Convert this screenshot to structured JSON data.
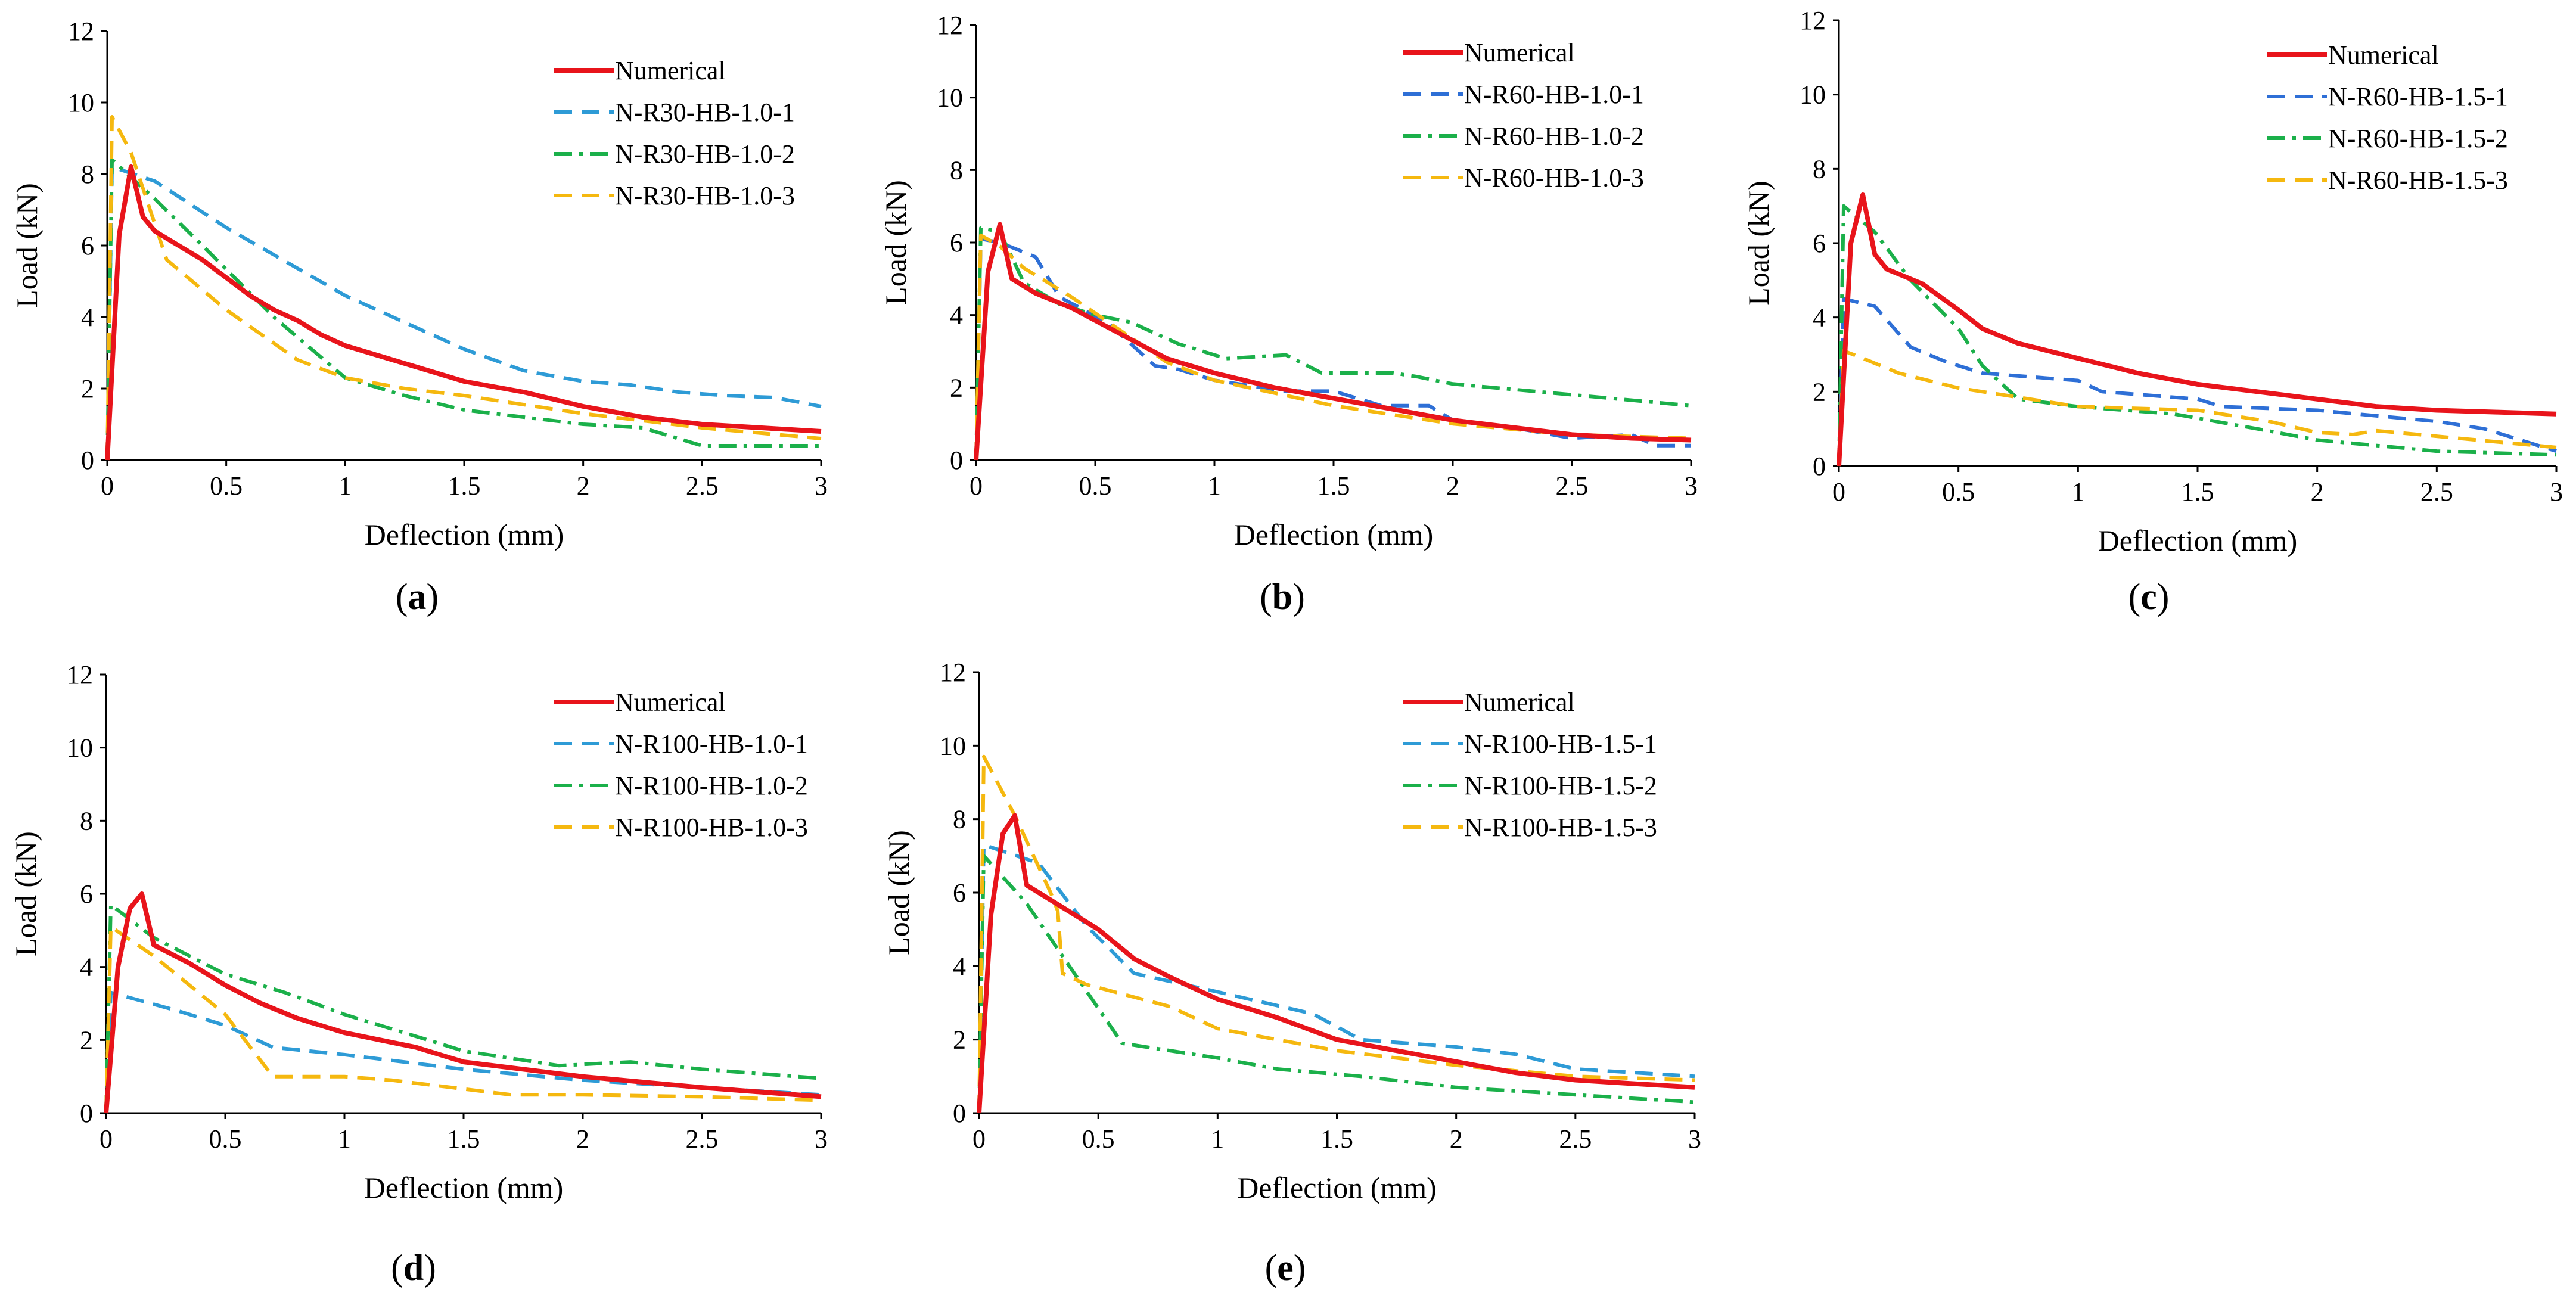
{
  "chart_data": [
    {
      "type": "line",
      "panel_label": "a",
      "xlabel": "Deflection (mm)",
      "ylabel": "Load (kN)",
      "xlim": [
        0,
        3
      ],
      "ylim": [
        0,
        12
      ],
      "xticks": [
        "0",
        "0.5",
        "1",
        "1.5",
        "2",
        "2.5",
        "3"
      ],
      "yticks": [
        "0",
        "2",
        "4",
        "6",
        "8",
        "10",
        "12"
      ],
      "grid": false,
      "legend": "top-right",
      "series": [
        {
          "name": "Numerical",
          "color": "#e8141b",
          "dash": "solid",
          "x": [
            0,
            0.05,
            0.1,
            0.15,
            0.2,
            0.3,
            0.4,
            0.5,
            0.6,
            0.7,
            0.8,
            0.9,
            1.0,
            1.2,
            1.5,
            1.75,
            2.0,
            2.25,
            2.5,
            2.75,
            3.0
          ],
          "y": [
            0,
            6.3,
            8.2,
            6.8,
            6.4,
            6.0,
            5.6,
            5.1,
            4.6,
            4.2,
            3.9,
            3.5,
            3.2,
            2.8,
            2.2,
            1.9,
            1.5,
            1.2,
            1.0,
            0.9,
            0.8
          ]
        },
        {
          "name": "N-R30-HB-1.0-1",
          "color": "#2e9bd6",
          "dash": "dash",
          "x": [
            0,
            0.02,
            0.2,
            0.5,
            1.0,
            1.5,
            1.75,
            2.0,
            2.2,
            2.4,
            2.6,
            2.8,
            3.0
          ],
          "y": [
            0,
            8.2,
            7.8,
            6.5,
            4.6,
            3.1,
            2.5,
            2.2,
            2.1,
            1.9,
            1.8,
            1.75,
            1.5
          ]
        },
        {
          "name": "N-R30-HB-1.0-2",
          "color": "#1bb04a",
          "dash": "dashdot",
          "x": [
            0,
            0.02,
            0.2,
            0.4,
            0.7,
            1.0,
            1.25,
            1.5,
            1.75,
            2.0,
            2.25,
            2.4,
            2.5,
            2.75,
            3.0
          ],
          "y": [
            0,
            8.4,
            7.3,
            6.0,
            4.0,
            2.3,
            1.8,
            1.4,
            1.2,
            1.0,
            0.9,
            0.6,
            0.4,
            0.4,
            0.4
          ]
        },
        {
          "name": "N-R30-HB-1.0-3",
          "color": "#f5b80f",
          "dash": "dash",
          "x": [
            0,
            0.02,
            0.1,
            0.25,
            0.5,
            0.8,
            1.0,
            1.25,
            1.5,
            2.0,
            2.5,
            3.0
          ],
          "y": [
            0,
            9.6,
            8.6,
            5.6,
            4.2,
            2.8,
            2.3,
            2.0,
            1.8,
            1.3,
            0.9,
            0.6
          ]
        }
      ]
    },
    {
      "type": "line",
      "panel_label": "b",
      "xlabel": "Deflection (mm)",
      "ylabel": "Load (kN)",
      "xlim": [
        0,
        3
      ],
      "ylim": [
        0,
        12
      ],
      "xticks": [
        "0",
        "0.5",
        "1",
        "1.5",
        "2",
        "2.5",
        "3"
      ],
      "yticks": [
        "0",
        "2",
        "4",
        "6",
        "8",
        "10",
        "12"
      ],
      "grid": false,
      "legend": "top-right",
      "series": [
        {
          "name": "Numerical",
          "color": "#e8141b",
          "dash": "solid",
          "x": [
            0,
            0.05,
            0.1,
            0.15,
            0.25,
            0.4,
            0.6,
            0.8,
            1.0,
            1.25,
            1.5,
            1.75,
            2.0,
            2.25,
            2.5,
            2.75,
            3.0
          ],
          "y": [
            0,
            5.2,
            6.5,
            5.0,
            4.6,
            4.2,
            3.5,
            2.8,
            2.4,
            2.0,
            1.7,
            1.4,
            1.1,
            0.9,
            0.7,
            0.6,
            0.55
          ]
        },
        {
          "name": "N-R60-HB-1.0-1",
          "color": "#2e6fd6",
          "dash": "dash",
          "x": [
            0,
            0.02,
            0.1,
            0.25,
            0.35,
            0.55,
            0.75,
            0.85,
            1.0,
            1.2,
            1.3,
            1.5,
            1.6,
            1.7,
            1.9,
            2.0,
            2.25,
            2.5,
            2.75,
            2.85,
            3.0
          ],
          "y": [
            0,
            6.1,
            6.0,
            5.6,
            4.5,
            3.8,
            2.6,
            2.5,
            2.2,
            2.0,
            1.9,
            1.9,
            1.7,
            1.5,
            1.5,
            1.1,
            0.9,
            0.6,
            0.7,
            0.4,
            0.4
          ]
        },
        {
          "name": "N-R60-HB-1.0-2",
          "color": "#1bb04a",
          "dash": "dashdot",
          "x": [
            0,
            0.02,
            0.1,
            0.2,
            0.35,
            0.5,
            0.65,
            0.85,
            1.05,
            1.3,
            1.45,
            1.6,
            1.75,
            1.85,
            2.0,
            2.5,
            3.0
          ],
          "y": [
            0,
            6.4,
            6.3,
            4.9,
            4.3,
            4.0,
            3.8,
            3.2,
            2.8,
            2.9,
            2.4,
            2.4,
            2.4,
            2.3,
            2.1,
            1.8,
            1.5
          ]
        },
        {
          "name": "N-R60-HB-1.0-3",
          "color": "#f5b80f",
          "dash": "dash",
          "x": [
            0,
            0.02,
            0.1,
            0.2,
            0.4,
            0.6,
            0.8,
            1.0,
            1.5,
            2.0,
            2.5,
            3.0
          ],
          "y": [
            0,
            6.2,
            5.9,
            5.3,
            4.5,
            3.6,
            2.7,
            2.2,
            1.5,
            1.0,
            0.7,
            0.6
          ]
        }
      ]
    },
    {
      "type": "line",
      "panel_label": "c",
      "xlabel": "Deflection (mm)",
      "ylabel": "Load (kN)",
      "xlim": [
        0,
        3
      ],
      "ylim": [
        0,
        12
      ],
      "xticks": [
        "0",
        "0.5",
        "1",
        "1.5",
        "2",
        "2.5",
        "3"
      ],
      "yticks": [
        "0",
        "2",
        "4",
        "6",
        "8",
        "10",
        "12"
      ],
      "grid": false,
      "legend": "top-right",
      "series": [
        {
          "name": "Numerical",
          "color": "#e8141b",
          "dash": "solid",
          "x": [
            0,
            0.05,
            0.1,
            0.15,
            0.2,
            0.35,
            0.5,
            0.6,
            0.75,
            1.0,
            1.25,
            1.5,
            1.75,
            2.0,
            2.25,
            2.5,
            2.75,
            3.0
          ],
          "y": [
            0,
            6.0,
            7.3,
            5.7,
            5.3,
            4.9,
            4.2,
            3.7,
            3.3,
            2.9,
            2.5,
            2.2,
            2.0,
            1.8,
            1.6,
            1.5,
            1.45,
            1.4
          ]
        },
        {
          "name": "N-R60-HB-1.5-1",
          "color": "#2e6fd6",
          "dash": "dash",
          "x": [
            0,
            0.02,
            0.15,
            0.3,
            0.45,
            0.6,
            0.8,
            1.0,
            1.1,
            1.5,
            1.6,
            2.0,
            2.5,
            2.7,
            2.85,
            3.0
          ],
          "y": [
            0,
            4.5,
            4.3,
            3.2,
            2.8,
            2.5,
            2.4,
            2.3,
            2.0,
            1.8,
            1.6,
            1.5,
            1.2,
            1.0,
            0.7,
            0.4
          ]
        },
        {
          "name": "N-R60-HB-1.5-2",
          "color": "#1bb04a",
          "dash": "dashdot",
          "x": [
            0,
            0.02,
            0.15,
            0.3,
            0.5,
            0.6,
            0.75,
            1.0,
            1.4,
            1.75,
            2.0,
            2.5,
            3.0
          ],
          "y": [
            0,
            7.0,
            6.3,
            5.0,
            3.7,
            2.7,
            1.8,
            1.6,
            1.4,
            1.0,
            0.7,
            0.4,
            0.3
          ]
        },
        {
          "name": "N-R60-HB-1.5-3",
          "color": "#f5b80f",
          "dash": "dash",
          "x": [
            0,
            0.02,
            0.1,
            0.25,
            0.5,
            1.0,
            1.5,
            1.8,
            2.0,
            2.15,
            2.25,
            2.5,
            2.75,
            3.0
          ],
          "y": [
            0,
            3.1,
            2.9,
            2.5,
            2.1,
            1.6,
            1.5,
            1.2,
            0.9,
            0.85,
            0.95,
            0.8,
            0.65,
            0.5
          ]
        }
      ]
    },
    {
      "type": "line",
      "panel_label": "d",
      "xlabel": "Deflection (mm)",
      "ylabel": "Load (kN)",
      "xlim": [
        0,
        3
      ],
      "ylim": [
        0,
        12
      ],
      "xticks": [
        "0",
        "0.5",
        "1",
        "1.5",
        "2",
        "2.5",
        "3"
      ],
      "yticks": [
        "0",
        "2",
        "4",
        "6",
        "8",
        "10",
        "12"
      ],
      "grid": false,
      "legend": "top-right",
      "series": [
        {
          "name": "Numerical",
          "color": "#e8141b",
          "dash": "solid",
          "x": [
            0,
            0.05,
            0.1,
            0.15,
            0.2,
            0.35,
            0.5,
            0.65,
            0.8,
            1.0,
            1.3,
            1.5,
            2.0,
            2.5,
            3.0
          ],
          "y": [
            0,
            4.0,
            5.6,
            6.0,
            4.6,
            4.1,
            3.5,
            3.0,
            2.6,
            2.2,
            1.8,
            1.4,
            1.0,
            0.7,
            0.45
          ]
        },
        {
          "name": "N-R100-HB-1.0-1",
          "color": "#2e9bd6",
          "dash": "dash",
          "x": [
            0,
            0.02,
            0.3,
            0.5,
            0.7,
            1.0,
            1.5,
            2.0,
            2.5,
            3.0
          ],
          "y": [
            0,
            3.3,
            2.8,
            2.4,
            1.8,
            1.6,
            1.2,
            0.9,
            0.7,
            0.5
          ]
        },
        {
          "name": "N-R100-HB-1.0-2",
          "color": "#1bb04a",
          "dash": "dashdot",
          "x": [
            0,
            0.02,
            0.2,
            0.5,
            0.75,
            1.0,
            1.5,
            1.9,
            2.2,
            2.5,
            3.0
          ],
          "y": [
            0,
            5.7,
            4.8,
            3.8,
            3.3,
            2.7,
            1.7,
            1.3,
            1.4,
            1.2,
            0.95
          ]
        },
        {
          "name": "N-R100-HB-1.0-3",
          "color": "#f5b80f",
          "dash": "dash",
          "x": [
            0,
            0.02,
            0.2,
            0.5,
            0.7,
            1.0,
            1.2,
            1.7,
            2.0,
            2.5,
            3.0
          ],
          "y": [
            0,
            5.1,
            4.3,
            2.7,
            1.0,
            1.0,
            0.9,
            0.5,
            0.5,
            0.45,
            0.35
          ]
        }
      ]
    },
    {
      "type": "line",
      "panel_label": "e",
      "xlabel": "Deflection (mm)",
      "ylabel": "Load (kN)",
      "xlim": [
        0,
        3
      ],
      "ylim": [
        0,
        12
      ],
      "xticks": [
        "0",
        "0.5",
        "1",
        "1.5",
        "2",
        "2.5",
        "3"
      ],
      "yticks": [
        "0",
        "2",
        "4",
        "6",
        "8",
        "10",
        "12"
      ],
      "grid": false,
      "legend": "top-right",
      "series": [
        {
          "name": "Numerical",
          "color": "#e8141b",
          "dash": "solid",
          "x": [
            0,
            0.05,
            0.1,
            0.15,
            0.2,
            0.3,
            0.5,
            0.65,
            0.8,
            1.0,
            1.25,
            1.5,
            1.75,
            2.0,
            2.25,
            2.5,
            2.75,
            3.0
          ],
          "y": [
            0,
            5.4,
            7.6,
            8.1,
            6.2,
            5.8,
            5.0,
            4.2,
            3.7,
            3.1,
            2.6,
            2.0,
            1.7,
            1.4,
            1.1,
            0.9,
            0.8,
            0.7
          ]
        },
        {
          "name": "N-R100-HB-1.5-1",
          "color": "#2e9bd6",
          "dash": "dash",
          "x": [
            0,
            0.02,
            0.25,
            0.45,
            0.65,
            1.0,
            1.4,
            1.6,
            2.0,
            2.25,
            2.5,
            3.0
          ],
          "y": [
            0,
            7.3,
            6.8,
            5.1,
            3.8,
            3.3,
            2.7,
            2.0,
            1.8,
            1.6,
            1.2,
            1.0
          ]
        },
        {
          "name": "N-R100-HB-1.5-2",
          "color": "#1bb04a",
          "dash": "dashdot",
          "x": [
            0,
            0.02,
            0.2,
            0.4,
            0.6,
            1.0,
            1.25,
            1.6,
            2.0,
            2.5,
            3.0
          ],
          "y": [
            0,
            7.0,
            5.7,
            3.8,
            1.9,
            1.5,
            1.2,
            1.0,
            0.7,
            0.5,
            0.3
          ]
        },
        {
          "name": "N-R100-HB-1.5-3",
          "color": "#f5b80f",
          "dash": "dash",
          "x": [
            0,
            0.02,
            0.15,
            0.3,
            0.33,
            0.35,
            0.45,
            0.8,
            1.0,
            1.5,
            2.0,
            2.5,
            3.0
          ],
          "y": [
            0,
            9.7,
            8.1,
            6.0,
            5.5,
            3.8,
            3.5,
            2.9,
            2.3,
            1.7,
            1.3,
            1.0,
            0.9
          ]
        }
      ]
    }
  ]
}
